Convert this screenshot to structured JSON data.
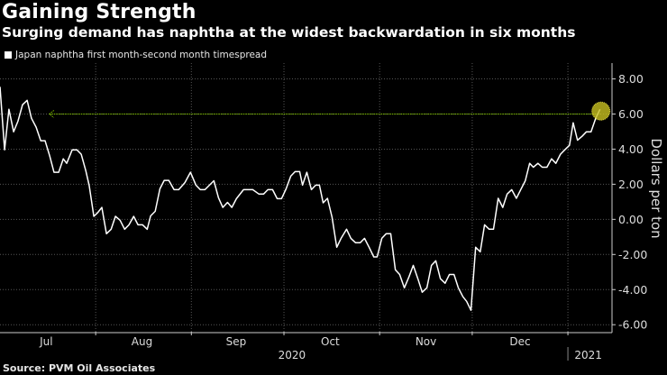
{
  "header": {
    "title": "Gaining Strength",
    "subtitle": "Surging demand has naphtha at the widest backwardation in six months"
  },
  "source": "Source: PVM Oil Associates",
  "colors": {
    "line": "#ffffff",
    "grid": "#555555",
    "marker": "#c8c020",
    "guide": "#7fbf00",
    "axis": "#cccccc"
  },
  "chart_data": {
    "type": "line",
    "title": "Gaining Strength",
    "ylabel": "Dollars per ton",
    "xlabel": "",
    "x_units": "days since Jul 1, 2020",
    "xlim": [
      0,
      198
    ],
    "ylim": [
      -6.4,
      8.9
    ],
    "grid": true,
    "legend_placement": "top-left",
    "y_ticks": [
      8,
      6,
      4,
      2,
      0,
      -2,
      -4,
      -6
    ],
    "y_tick_labels": [
      "8.00",
      "6.00",
      "4.00",
      "2.00",
      "0.00",
      "-2.00",
      "-4.00",
      "-6.00"
    ],
    "month_boundaries": [
      31,
      62,
      92,
      123,
      153,
      184
    ],
    "month_labels": [
      {
        "label": "Jul",
        "x": 15
      },
      {
        "label": "Aug",
        "x": 46
      },
      {
        "label": "Sep",
        "x": 76.5
      },
      {
        "label": "Oct",
        "x": 107
      },
      {
        "label": "Nov",
        "x": 138
      },
      {
        "label": "Dec",
        "x": 168.5
      }
    ],
    "year_labels": [
      {
        "label": "2020",
        "x": 94
      },
      {
        "label": "2021",
        "x": 190
      }
    ],
    "year_separators": [
      184
    ],
    "reference_line": {
      "value": 6.0,
      "from_x": 16
    },
    "highlight_point": {
      "x": 194.4,
      "y": 6.27
    },
    "series": [
      {
        "name": "Japan naphtha first month-second month timespread",
        "x": [
          0,
          1.5,
          2.9,
          4.4,
          5.8,
          7.3,
          8.8,
          10.2,
          11.7,
          13.2,
          14.6,
          16.1,
          17.5,
          19,
          20.5,
          21.6,
          23.4,
          24.9,
          26.3,
          27.8,
          28.9,
          30.4,
          31.6,
          33,
          34.5,
          36,
          37.4,
          38.9,
          40.4,
          41.8,
          43.3,
          44.7,
          46.2,
          47.7,
          48.8,
          50.3,
          51.8,
          53.2,
          54.7,
          56.4,
          57.9,
          59.9,
          61.7,
          63.5,
          64.9,
          66.4,
          69.3,
          70.8,
          72.2,
          73.7,
          75.1,
          76.6,
          78.9,
          81.9,
          83.9,
          85.4,
          86.8,
          88.3,
          89.8,
          91.2,
          92.7,
          94.2,
          95.6,
          97.1,
          98,
          99.4,
          100.9,
          102.3,
          103.5,
          104.7,
          106.1,
          107.6,
          109.1,
          110.5,
          112.3,
          113.7,
          115.2,
          116.7,
          118.1,
          119.6,
          121.1,
          122.2,
          123.7,
          125.1,
          126.6,
          128.1,
          129.5,
          131,
          132.5,
          133.9,
          135.4,
          136.8,
          138.3,
          139.8,
          141.2,
          142.7,
          144.2,
          145.6,
          147.1,
          148.5,
          150,
          151.2,
          152.6,
          154.1,
          155.6,
          157,
          158.5,
          159.9,
          161.4,
          162.9,
          164.3,
          165.8,
          167.3,
          168.7,
          170.2,
          171.6,
          172.8,
          174.3,
          175.7,
          177.2,
          178.7,
          180.1,
          181.6,
          183,
          184.5,
          185.7,
          187.1,
          188.6,
          190,
          191.5,
          193,
          194.4
        ],
        "values": [
          7.55,
          3.96,
          6.27,
          4.99,
          5.59,
          6.53,
          6.78,
          5.76,
          5.25,
          4.48,
          4.48,
          3.62,
          2.68,
          2.68,
          3.45,
          3.19,
          3.96,
          3.96,
          3.71,
          2.77,
          1.91,
          0.17,
          0.37,
          0.68,
          -0.82,
          -0.56,
          0.17,
          -0.05,
          -0.56,
          -0.31,
          0.17,
          -0.31,
          -0.31,
          -0.56,
          0.2,
          0.46,
          1.74,
          2.22,
          2.22,
          1.69,
          1.69,
          2.09,
          2.68,
          1.95,
          1.69,
          1.69,
          2.2,
          1.23,
          0.68,
          0.97,
          0.68,
          1.18,
          1.69,
          1.69,
          1.44,
          1.44,
          1.69,
          1.69,
          1.18,
          1.18,
          1.74,
          2.46,
          2.72,
          2.72,
          1.95,
          2.68,
          1.69,
          1.95,
          1.95,
          0.94,
          1.2,
          0.12,
          -1.59,
          -1.08,
          -0.56,
          -1.08,
          -1.33,
          -1.33,
          -1.08,
          -1.59,
          -2.14,
          -2.14,
          -1.08,
          -0.82,
          -0.82,
          -2.87,
          -3.14,
          -3.9,
          -3.28,
          -2.62,
          -3.38,
          -4.15,
          -3.9,
          -2.62,
          -2.36,
          -3.38,
          -3.64,
          -3.14,
          -3.14,
          -3.9,
          -4.41,
          -4.67,
          -5.18,
          -1.59,
          -1.85,
          -0.31,
          -0.56,
          -0.56,
          1.2,
          0.68,
          1.44,
          1.69,
          1.2,
          1.69,
          2.2,
          3.19,
          2.97,
          3.19,
          2.97,
          2.97,
          3.45,
          3.19,
          3.71,
          3.96,
          4.22,
          5.5,
          4.51,
          4.73,
          4.99,
          4.99,
          5.76,
          6.27
        ]
      }
    ]
  }
}
